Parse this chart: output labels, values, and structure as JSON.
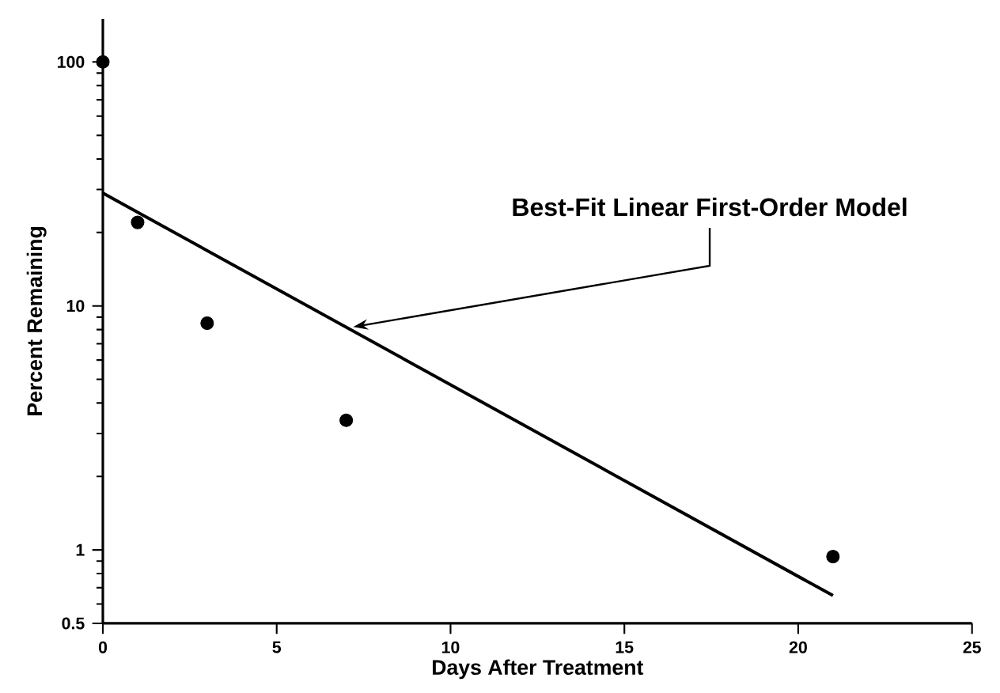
{
  "chart_data": {
    "type": "scatter",
    "xlabel": "Days After Treatment",
    "ylabel": "Percent Remaining",
    "log": "y",
    "xlim": [
      0,
      25
    ],
    "ylim": [
      0.5,
      150
    ],
    "xticks": [
      0,
      5,
      10,
      15,
      20,
      25
    ],
    "yticks": [
      0.5,
      1,
      10,
      100
    ],
    "series": [
      {
        "marker": "circle",
        "color": "#000000",
        "x": [
          0,
          1,
          3,
          7,
          21
        ],
        "values": [
          100,
          22,
          8.5,
          3.4,
          0.94
        ]
      },
      {
        "type": "line",
        "marker": "none",
        "color": "#000000",
        "x": [
          0,
          21
        ],
        "values": [
          29,
          0.65
        ]
      }
    ],
    "annotations": [
      {
        "text": "Best-Fit Linear First-Order Model",
        "x": 7.2,
        "y": 8.2
      }
    ]
  }
}
